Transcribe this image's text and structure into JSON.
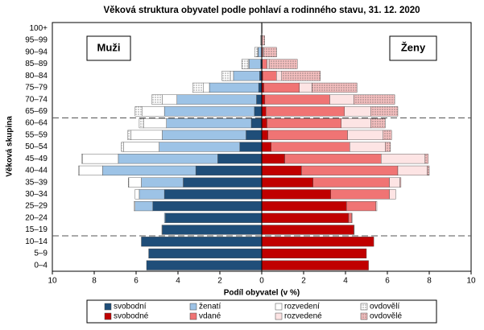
{
  "chart_data": {
    "type": "pyramid",
    "title": "Věková struktura obyvatel podle pohlaví a rodinného stavu, 31. 12. 2020",
    "xlabel": "Podíl obyvatel (v %)",
    "ylabel": "Věková skupina",
    "left_label": "Muži",
    "right_label": "Ženy",
    "categories": [
      "0–4",
      "5–9",
      "10–14",
      "15–19",
      "20–24",
      "25–29",
      "30–34",
      "35–39",
      "40–44",
      "45–49",
      "50–54",
      "55–59",
      "60–64",
      "65–69",
      "70–74",
      "75–79",
      "80–84",
      "85–89",
      "90–94",
      "95–99",
      "100+"
    ],
    "xlim": [
      -10,
      10
    ],
    "xticks": [
      {
        "value": -10,
        "label": "10"
      },
      {
        "value": -8,
        "label": "8"
      },
      {
        "value": -6,
        "label": "6"
      },
      {
        "value": -4,
        "label": "4"
      },
      {
        "value": -2,
        "label": "2"
      },
      0,
      2,
      4,
      6,
      8,
      10
    ],
    "series": [
      {
        "name": "svobodní",
        "color": "#1f4e79",
        "values": [
          -5.5,
          -5.4,
          -5.75,
          -4.75,
          -4.6,
          -5.2,
          -4.65,
          -3.75,
          -3.15,
          -2.1,
          -1.05,
          -0.75,
          -0.5,
          -0.35,
          -0.25,
          -0.15,
          -0.1,
          -0.05,
          -0.02,
          0,
          0
        ]
      },
      {
        "name": "ženatí",
        "color": "#9dc3e6",
        "values": [
          0,
          0,
          0,
          -0.02,
          -0.05,
          -0.85,
          -1.2,
          -2.0,
          -4.45,
          -4.75,
          -3.85,
          -4.0,
          -4.05,
          -4.3,
          -3.8,
          -2.35,
          -1.25,
          -0.55,
          -0.15,
          -0.02,
          0
        ]
      },
      {
        "name": "rozvedení",
        "color": "#ffffff",
        "values": [
          0,
          0,
          0,
          0,
          0,
          -0.05,
          -0.2,
          -0.6,
          -1.1,
          -1.7,
          -1.7,
          -1.5,
          -1.1,
          -1.05,
          -0.7,
          -0.3,
          -0.15,
          -0.05,
          -0.02,
          0,
          0
        ]
      },
      {
        "name": "ovdovělí",
        "color": "#ffffff",
        "pattern": "dots",
        "values": [
          0,
          0,
          0,
          0,
          0,
          0,
          0,
          -0.02,
          -0.05,
          -0.05,
          -0.1,
          -0.15,
          -0.2,
          -0.35,
          -0.5,
          -0.5,
          -0.4,
          -0.3,
          -0.15,
          -0.04,
          -0.01
        ]
      },
      {
        "name": "svobodné",
        "color": "#c00000",
        "values": [
          5.1,
          5.0,
          5.35,
          4.4,
          4.15,
          4.05,
          3.3,
          2.45,
          1.9,
          1.1,
          0.45,
          0.3,
          0.25,
          0.2,
          0.15,
          0.1,
          0.05,
          0.03,
          0.01,
          0,
          0
        ]
      },
      {
        "name": "vdané",
        "color": "#f07474",
        "values": [
          0,
          0,
          0,
          0.02,
          0.15,
          1.4,
          2.8,
          3.65,
          4.6,
          4.6,
          3.75,
          3.8,
          3.55,
          3.75,
          3.1,
          1.7,
          0.65,
          0.22,
          0.05,
          0.01,
          0
        ]
      },
      {
        "name": "rozvedené",
        "color": "#fde4e4",
        "values": [
          0,
          0,
          0,
          0,
          0.02,
          0.05,
          0.3,
          0.5,
          1.4,
          2.1,
          1.7,
          1.7,
          1.4,
          1.25,
          1.15,
          0.6,
          0.25,
          0.1,
          0.05,
          0.01,
          0
        ]
      },
      {
        "name": "ovdovělé",
        "color": "#f6c0c0",
        "pattern": "dots",
        "values": [
          0,
          0,
          0,
          0,
          0,
          0,
          0,
          0.05,
          0.1,
          0.15,
          0.25,
          0.4,
          0.7,
          1.3,
          1.95,
          2.15,
          1.85,
          1.35,
          0.6,
          0.12,
          0.02
        ]
      }
    ]
  }
}
